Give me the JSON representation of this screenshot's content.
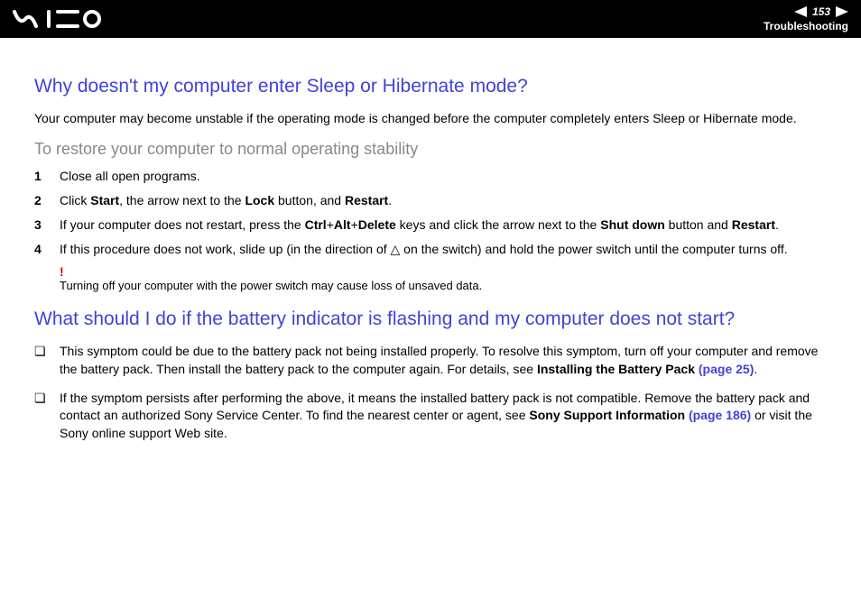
{
  "header": {
    "page_number": "153",
    "section": "Troubleshooting"
  },
  "q1": {
    "heading": "Why doesn't my computer enter Sleep or Hibernate mode?",
    "intro": "Your computer may become unstable if the operating mode is changed before the computer completely enters Sleep or Hibernate mode.",
    "sub_heading": "To restore your computer to normal operating stability",
    "steps": [
      {
        "n": "1",
        "html": "Close all open programs."
      },
      {
        "n": "2",
        "html": "Click <b>Start</b>, the arrow next to the <b>Lock</b> button, and <b>Restart</b>."
      },
      {
        "n": "3",
        "html": "If your computer does not restart, press the <b>Ctrl</b>+<b>Alt</b>+<b>Delete</b> keys and click the arrow next to the <b>Shut down</b> button and <b>Restart</b>."
      },
      {
        "n": "4",
        "html": "If this procedure does not work, slide up (in the direction of △ on the switch) and hold the power switch until the computer turns off."
      }
    ],
    "warning_mark": "!",
    "warning_text": "Turning off your computer with the power switch may cause loss of unsaved data."
  },
  "q2": {
    "heading": "What should I do if the battery indicator is flashing and my computer does not start?",
    "bullets": [
      {
        "html": "This symptom could be due to the battery pack not being installed properly. To resolve this symptom, turn off your computer and remove the battery pack. Then install the battery pack to the computer again. For details, see <b>Installing the Battery Pack <span class=\"link-ref\">(page 25)</span></b>."
      },
      {
        "html": "If the symptom persists after performing the above, it means the installed battery pack is not compatible. Remove the battery pack and contact an authorized Sony Service Center. To find the nearest center or agent, see <b>Sony Support Information <span class=\"link-ref\">(page 186)</span></b> or visit the Sony online support Web site."
      }
    ]
  },
  "colors": {
    "heading_blue": "#4242d6",
    "sub_gray": "#888888",
    "warn_red": "#d00000",
    "header_bg": "#000000",
    "page_bg": "#ffffff"
  }
}
